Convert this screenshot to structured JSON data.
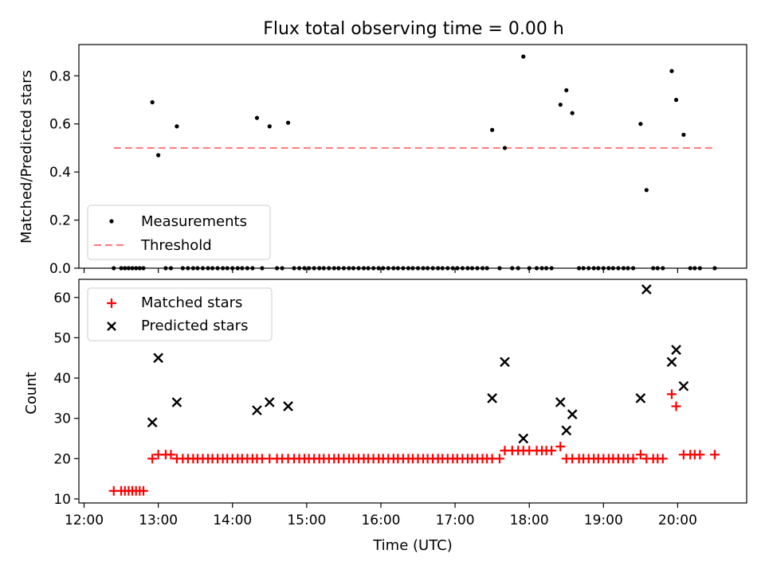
{
  "chart_data": {
    "title": "Flux total observing time = 0.00 h",
    "xlabel": "Time (UTC)",
    "x_unit": "hours (UTC)",
    "xlim": [
      11.93,
      20.93
    ],
    "x_ticks": [
      {
        "value": 12,
        "label": "12:00"
      },
      {
        "value": 13,
        "label": "13:00"
      },
      {
        "value": 14,
        "label": "14:00"
      },
      {
        "value": 15,
        "label": "15:00"
      },
      {
        "value": 16,
        "label": "16:00"
      },
      {
        "value": 17,
        "label": "17:00"
      },
      {
        "value": 18,
        "label": "18:00"
      },
      {
        "value": 19,
        "label": "19:00"
      },
      {
        "value": 20,
        "label": "20:00"
      }
    ],
    "panels": [
      {
        "type": "scatter",
        "ylabel": "Matched/Predicted stars",
        "ylim": [
          0,
          0.93
        ],
        "y_ticks": [
          {
            "value": 0.0,
            "label": "0.0"
          },
          {
            "value": 0.2,
            "label": "0.2"
          },
          {
            "value": 0.4,
            "label": "0.4"
          },
          {
            "value": 0.6,
            "label": "0.6"
          },
          {
            "value": 0.8,
            "label": "0.8"
          }
        ],
        "legend_position": "lower-left",
        "series": [
          {
            "name": "Measurements",
            "marker": "dot",
            "color": "#000000",
            "x": [
              12.4,
              12.5,
              12.55,
              12.6,
              12.65,
              12.7,
              12.75,
              12.8,
              12.92,
              13.0,
              13.1,
              13.17,
              13.25,
              13.33,
              13.4,
              13.47,
              13.53,
              13.6,
              13.67,
              13.73,
              13.8,
              13.87,
              13.93,
              14.0,
              14.07,
              14.13,
              14.2,
              14.27,
              14.33,
              14.4,
              14.5,
              14.6,
              14.67,
              14.75,
              14.83,
              14.9,
              14.97,
              15.03,
              15.1,
              15.17,
              15.23,
              15.3,
              15.37,
              15.43,
              15.5,
              15.57,
              15.63,
              15.7,
              15.77,
              15.83,
              15.9,
              15.97,
              16.03,
              16.1,
              16.17,
              16.23,
              16.3,
              16.37,
              16.43,
              16.5,
              16.57,
              16.63,
              16.7,
              16.77,
              16.83,
              16.9,
              16.97,
              17.03,
              17.1,
              17.17,
              17.23,
              17.3,
              17.37,
              17.43,
              17.5,
              17.6,
              17.67,
              17.77,
              17.85,
              17.92,
              18.0,
              18.1,
              18.17,
              18.23,
              18.3,
              18.42,
              18.5,
              18.58,
              18.67,
              18.73,
              18.8,
              18.87,
              18.93,
              19.0,
              19.07,
              19.13,
              19.2,
              19.27,
              19.33,
              19.4,
              19.5,
              19.58,
              19.67,
              19.73,
              19.8,
              19.92,
              19.98,
              20.08,
              20.17,
              20.23,
              20.3,
              20.5
            ],
            "y": [
              0,
              0,
              0,
              0,
              0,
              0,
              0,
              0,
              0.69,
              0.47,
              0,
              0,
              0.59,
              0,
              0,
              0,
              0,
              0,
              0,
              0,
              0,
              0,
              0,
              0,
              0,
              0,
              0,
              0,
              0.625,
              0,
              0.59,
              0,
              0,
              0.605,
              0,
              0,
              0,
              0,
              0,
              0,
              0,
              0,
              0,
              0,
              0,
              0,
              0,
              0,
              0,
              0,
              0,
              0,
              0,
              0,
              0,
              0,
              0,
              0,
              0,
              0,
              0,
              0,
              0,
              0,
              0,
              0,
              0,
              0,
              0,
              0,
              0,
              0,
              0,
              0,
              0.575,
              0,
              0.5,
              0,
              0,
              0.88,
              0,
              0,
              0,
              0,
              0,
              0.68,
              0.74,
              0.645,
              0,
              0,
              0,
              0,
              0,
              0,
              0,
              0,
              0,
              0,
              0,
              0,
              0.6,
              0.325,
              0,
              0,
              0,
              0.82,
              0.7,
              0.555,
              0,
              0,
              0,
              0
            ]
          },
          {
            "name": "Threshold",
            "type": "line",
            "style": "dashed",
            "color": "#ff8080",
            "x": [
              12.4,
              20.5
            ],
            "y": [
              0.5,
              0.5
            ]
          }
        ]
      },
      {
        "type": "scatter",
        "ylabel": "Count",
        "ylim": [
          9,
          64.5
        ],
        "y_ticks": [
          {
            "value": 10,
            "label": "10"
          },
          {
            "value": 20,
            "label": "20"
          },
          {
            "value": 30,
            "label": "30"
          },
          {
            "value": 40,
            "label": "40"
          },
          {
            "value": 50,
            "label": "50"
          },
          {
            "value": 60,
            "label": "60"
          }
        ],
        "legend_position": "upper-left",
        "series": [
          {
            "name": "Matched stars",
            "marker": "plus",
            "color": "#ff0000",
            "x": [
              12.4,
              12.5,
              12.55,
              12.6,
              12.65,
              12.7,
              12.75,
              12.8,
              12.92,
              13.0,
              13.1,
              13.17,
              13.25,
              13.33,
              13.4,
              13.47,
              13.53,
              13.6,
              13.67,
              13.73,
              13.8,
              13.87,
              13.93,
              14.0,
              14.07,
              14.13,
              14.2,
              14.27,
              14.33,
              14.4,
              14.5,
              14.6,
              14.67,
              14.75,
              14.83,
              14.9,
              14.97,
              15.03,
              15.1,
              15.17,
              15.23,
              15.3,
              15.37,
              15.43,
              15.5,
              15.57,
              15.63,
              15.7,
              15.77,
              15.83,
              15.9,
              15.97,
              16.03,
              16.1,
              16.17,
              16.23,
              16.3,
              16.37,
              16.43,
              16.5,
              16.57,
              16.63,
              16.7,
              16.77,
              16.83,
              16.9,
              16.97,
              17.03,
              17.1,
              17.17,
              17.23,
              17.3,
              17.37,
              17.43,
              17.5,
              17.6,
              17.67,
              17.77,
              17.85,
              17.92,
              18.0,
              18.1,
              18.17,
              18.23,
              18.3,
              18.42,
              18.5,
              18.58,
              18.67,
              18.73,
              18.8,
              18.87,
              18.93,
              19.0,
              19.07,
              19.13,
              19.2,
              19.27,
              19.33,
              19.4,
              19.5,
              19.58,
              19.67,
              19.73,
              19.8,
              19.92,
              19.98,
              20.08,
              20.17,
              20.23,
              20.3,
              20.5
            ],
            "y": [
              12,
              12,
              12,
              12,
              12,
              12,
              12,
              12,
              20,
              21,
              21,
              21,
              20,
              20,
              20,
              20,
              20,
              20,
              20,
              20,
              20,
              20,
              20,
              20,
              20,
              20,
              20,
              20,
              20,
              20,
              20,
              20,
              20,
              20,
              20,
              20,
              20,
              20,
              20,
              20,
              20,
              20,
              20,
              20,
              20,
              20,
              20,
              20,
              20,
              20,
              20,
              20,
              20,
              20,
              20,
              20,
              20,
              20,
              20,
              20,
              20,
              20,
              20,
              20,
              20,
              20,
              20,
              20,
              20,
              20,
              20,
              20,
              20,
              20,
              20,
              20,
              22,
              22,
              22,
              22,
              22,
              22,
              22,
              22,
              22,
              23,
              20,
              20,
              20,
              20,
              20,
              20,
              20,
              20,
              20,
              20,
              20,
              20,
              20,
              20,
              21,
              20,
              20,
              20,
              20,
              36,
              33,
              21,
              21,
              21,
              21,
              21
            ]
          },
          {
            "name": "Predicted stars",
            "marker": "x",
            "color": "#000000",
            "x": [
              12.92,
              13.0,
              13.25,
              14.33,
              14.5,
              14.75,
              17.5,
              17.67,
              17.92,
              18.42,
              18.5,
              18.58,
              19.5,
              19.58,
              19.92,
              19.98,
              20.08
            ],
            "y": [
              29,
              45,
              34,
              32,
              34,
              33,
              35,
              44,
              25,
              34,
              27,
              31,
              35,
              62,
              44,
              47,
              38
            ]
          }
        ]
      }
    ]
  }
}
